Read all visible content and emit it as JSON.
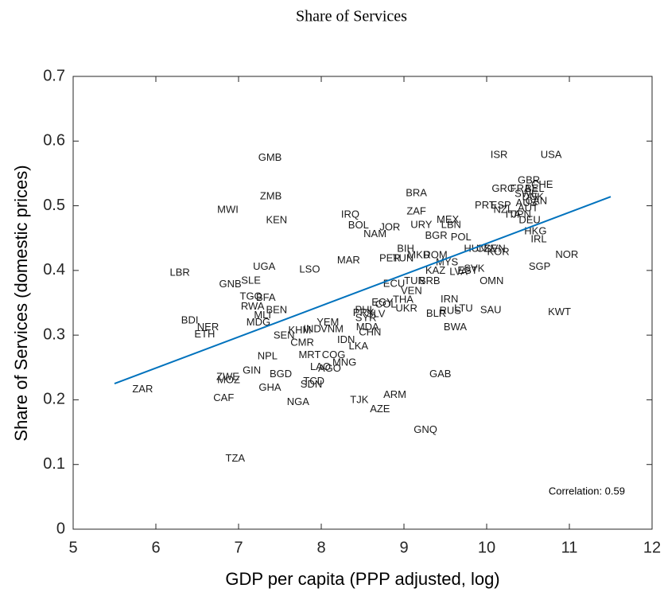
{
  "chart_data": {
    "type": "scatter",
    "title": "Share of Services",
    "x_label": "GDP per capita (PPP adjusted, log)",
    "y_label": "Share of Services (domestic prices)",
    "annotation": "Correlation: 0.59",
    "xlim": [
      5,
      12
    ],
    "ylim": [
      0,
      0.7
    ],
    "xticks": [
      5,
      6,
      7,
      8,
      9,
      10,
      11,
      12
    ],
    "yticks": [
      0,
      0.1,
      0.2,
      0.3,
      0.4,
      0.5,
      0.6,
      0.7
    ],
    "grid": false,
    "label_color": "#1a1a1a",
    "labels": [
      "GMB",
      "ZMB",
      "MWI",
      "KEN",
      "ISR",
      "USA",
      "BRA",
      "ZAF",
      "IRQ",
      "BOL",
      "NAM",
      "JOR",
      "POL",
      "URY",
      "MEX",
      "LBN",
      "BGR",
      "GBR",
      "GRC",
      "FRA",
      "BEL",
      "DNK",
      "CHE",
      "SWE",
      "PRT",
      "ESP",
      "NZL",
      "AUS",
      "AUT",
      "CAN",
      "ITA",
      "JPN",
      "DEU",
      "HKG",
      "IRL",
      "NOR",
      "SGP",
      "KWT",
      "HUN",
      "CZE",
      "SVN",
      "KOR",
      "SVK",
      "EST",
      "LVA",
      "OMN",
      "SAU",
      "LTU",
      "RUS",
      "BLR",
      "BWA",
      "IRN",
      "GAB",
      "ARM",
      "AZE",
      "TJK",
      "GNQ",
      "BIH",
      "PER",
      "TUN",
      "MKD",
      "ROM",
      "MYS",
      "KAZ",
      "ECU",
      "TUR",
      "SRB",
      "VEN",
      "THA",
      "COL",
      "EGY",
      "UKR",
      "PHL",
      "PRY",
      "SYR",
      "SLV",
      "MDA",
      "CHN",
      "IDN",
      "IND",
      "VNM",
      "YEM",
      "KHM",
      "SEN",
      "CMR",
      "LKA",
      "MRT",
      "COG",
      "MNG",
      "LAO",
      "AGO",
      "NGA",
      "TCD",
      "SDN",
      "BGD",
      "GIN",
      "NPL",
      "GHA",
      "ZWE",
      "MOZ",
      "CAF",
      "ZAR",
      "TZA",
      "LBR",
      "UGA",
      "LSO",
      "MAR",
      "GNB",
      "SLE",
      "TGO",
      "BFA",
      "RWA",
      "BEN",
      "MLI",
      "MDG",
      "BDI",
      "NER",
      "ETH"
    ],
    "x": [
      7.38,
      7.39,
      6.87,
      7.46,
      10.15,
      10.78,
      9.15,
      9.15,
      8.35,
      8.45,
      8.65,
      8.83,
      9.69,
      9.21,
      9.53,
      9.57,
      9.39,
      10.51,
      10.2,
      10.41,
      10.58,
      10.56,
      10.67,
      10.48,
      9.98,
      10.17,
      10.2,
      10.48,
      10.5,
      10.6,
      10.32,
      10.42,
      10.52,
      10.59,
      10.63,
      10.97,
      10.64,
      10.88,
      9.86,
      10.0,
      10.1,
      10.14,
      9.85,
      9.77,
      9.66,
      10.06,
      10.05,
      9.72,
      9.56,
      9.39,
      9.62,
      9.55,
      9.44,
      8.89,
      8.71,
      8.46,
      9.26,
      9.02,
      8.83,
      8.99,
      9.18,
      9.38,
      9.52,
      9.38,
      8.88,
      9.13,
      9.31,
      9.09,
      8.99,
      8.78,
      8.74,
      9.03,
      8.53,
      8.51,
      8.54,
      8.66,
      8.56,
      8.59,
      8.3,
      7.89,
      8.13,
      8.08,
      7.74,
      7.55,
      7.77,
      8.45,
      7.86,
      8.15,
      8.28,
      7.99,
      8.1,
      7.72,
      7.91,
      7.88,
      7.51,
      7.16,
      7.35,
      7.38,
      6.87,
      6.88,
      6.82,
      5.84,
      6.96,
      6.29,
      7.31,
      7.86,
      8.33,
      6.9,
      7.15,
      7.15,
      7.33,
      7.17,
      7.46,
      7.29,
      7.24,
      6.41,
      6.63,
      6.59
    ],
    "y": [
      0.574,
      0.514,
      0.493,
      0.477,
      0.578,
      0.578,
      0.519,
      0.491,
      0.486,
      0.469,
      0.456,
      0.466,
      0.451,
      0.47,
      0.478,
      0.47,
      0.453,
      0.539,
      0.526,
      0.526,
      0.526,
      0.513,
      0.532,
      0.518,
      0.5,
      0.5,
      0.493,
      0.504,
      0.496,
      0.507,
      0.486,
      0.486,
      0.477,
      0.46,
      0.448,
      0.424,
      0.405,
      0.335,
      0.433,
      0.433,
      0.433,
      0.428,
      0.402,
      0.399,
      0.397,
      0.383,
      0.338,
      0.341,
      0.337,
      0.333,
      0.312,
      0.355,
      0.239,
      0.207,
      0.185,
      0.199,
      0.153,
      0.433,
      0.418,
      0.418,
      0.423,
      0.423,
      0.412,
      0.399,
      0.379,
      0.383,
      0.383,
      0.368,
      0.354,
      0.347,
      0.35,
      0.341,
      0.338,
      0.334,
      0.326,
      0.332,
      0.312,
      0.304,
      0.292,
      0.309,
      0.309,
      0.319,
      0.307,
      0.299,
      0.288,
      0.282,
      0.269,
      0.269,
      0.257,
      0.25,
      0.248,
      0.196,
      0.228,
      0.223,
      0.239,
      0.245,
      0.267,
      0.218,
      0.235,
      0.23,
      0.202,
      0.216,
      0.109,
      0.396,
      0.405,
      0.401,
      0.415,
      0.378,
      0.384,
      0.359,
      0.357,
      0.344,
      0.338,
      0.33,
      0.319,
      0.322,
      0.312,
      0.301
    ],
    "fit_line": {
      "x": [
        5.5,
        11.5
      ],
      "values": [
        0.225,
        0.514
      ],
      "color": "#0072bd"
    }
  }
}
